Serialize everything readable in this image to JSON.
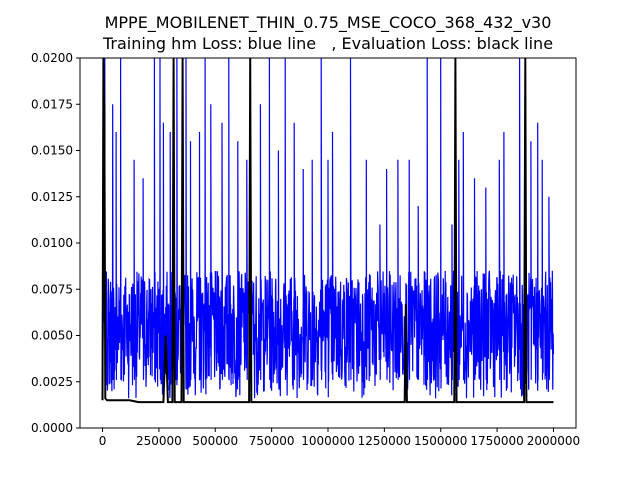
{
  "chart_data": {
    "type": "line",
    "title": "MPPE_MOBILENET_THIN_0.75_MSE_COCO_368_432_v30",
    "subtitle": "Training hm Loss: blue line   , Evaluation Loss: black line",
    "xlabel": "",
    "ylabel": "",
    "xlim": [
      -100000,
      2100000
    ],
    "ylim": [
      0,
      0.02
    ],
    "grid": false,
    "legend": "none",
    "x_ticks": [
      0,
      250000,
      500000,
      750000,
      1000000,
      1250000,
      1500000,
      1750000,
      2000000
    ],
    "x_tick_labels": [
      "0",
      "250000",
      "500000",
      "750000",
      "1000000",
      "1250000",
      "1500000",
      "1750000",
      "2000000"
    ],
    "y_ticks": [
      0,
      0.0025,
      0.005,
      0.0075,
      0.01,
      0.0125,
      0.015,
      0.0175,
      0.02
    ],
    "y_tick_labels": [
      "0.0000",
      "0.0025",
      "0.0050",
      "0.0075",
      "0.0100",
      "0.0125",
      "0.0150",
      "0.0175",
      "0.0200"
    ],
    "series": [
      {
        "color": "#0000ff",
        "x_range": [
          0,
          2000000
        ],
        "band_low": 0.0016,
        "band_high": 0.0085,
        "spikes": [
          [
            10000,
            0.02
          ],
          [
            45000,
            0.0175
          ],
          [
            60000,
            0.016
          ],
          [
            80000,
            0.02
          ],
          [
            140000,
            0.0145
          ],
          [
            180000,
            0.0135
          ],
          [
            230000,
            0.02
          ],
          [
            255000,
            0.02
          ],
          [
            270000,
            0.0165
          ],
          [
            300000,
            0.016
          ],
          [
            330000,
            0.02
          ],
          [
            370000,
            0.02
          ],
          [
            390000,
            0.0155
          ],
          [
            430000,
            0.016
          ],
          [
            455000,
            0.02
          ],
          [
            480000,
            0.0175
          ],
          [
            530000,
            0.0165
          ],
          [
            560000,
            0.02
          ],
          [
            600000,
            0.0155
          ],
          [
            640000,
            0.0145
          ],
          [
            700000,
            0.0175
          ],
          [
            740000,
            0.02
          ],
          [
            780000,
            0.015
          ],
          [
            810000,
            0.02
          ],
          [
            850000,
            0.0165
          ],
          [
            890000,
            0.014
          ],
          [
            930000,
            0.0145
          ],
          [
            970000,
            0.02
          ],
          [
            1000000,
            0.0145
          ],
          [
            1020000,
            0.016
          ],
          [
            1100000,
            0.02
          ],
          [
            1170000,
            0.0145
          ],
          [
            1230000,
            0.011
          ],
          [
            1260000,
            0.014
          ],
          [
            1310000,
            0.0145
          ],
          [
            1360000,
            0.0145
          ],
          [
            1400000,
            0.012
          ],
          [
            1440000,
            0.02
          ],
          [
            1500000,
            0.02
          ],
          [
            1550000,
            0.011
          ],
          [
            1580000,
            0.0145
          ],
          [
            1600000,
            0.016
          ],
          [
            1650000,
            0.0135
          ],
          [
            1700000,
            0.013
          ],
          [
            1760000,
            0.0145
          ],
          [
            1780000,
            0.016
          ],
          [
            1850000,
            0.02
          ],
          [
            1900000,
            0.0155
          ],
          [
            1930000,
            0.0165
          ],
          [
            1950000,
            0.0145
          ],
          [
            1980000,
            0.0125
          ],
          [
            1995000,
            0.0085
          ]
        ]
      },
      {
        "color": "#000000",
        "x": [
          0,
          4000,
          8000,
          12000,
          20000,
          40000,
          60000,
          80000,
          100000,
          120000,
          160000,
          200000,
          240000,
          250000,
          270000,
          280000,
          290000,
          310000,
          315000,
          320000,
          340000,
          350000,
          355000,
          360000,
          400000,
          500000,
          600000,
          640000,
          650000,
          655000,
          660000,
          670000,
          700000,
          800000,
          900000,
          1000000,
          1100000,
          1200000,
          1300000,
          1340000,
          1345000,
          1350000,
          1400000,
          1500000,
          1560000,
          1565000,
          1570000,
          1600000,
          1700000,
          1800000,
          1870000,
          1875000,
          1880000,
          1900000,
          1950000,
          2000000
        ],
        "y": [
          0.0015,
          0.02,
          0.0175,
          0.0016,
          0.0015,
          0.0015,
          0.0015,
          0.0015,
          0.0015,
          0.0015,
          0.0014,
          0.0014,
          0.0014,
          0.0014,
          0.0014,
          0.005,
          0.0014,
          0.0014,
          0.02,
          0.0014,
          0.0014,
          0.0014,
          0.02,
          0.0014,
          0.0014,
          0.0014,
          0.0014,
          0.0014,
          0.0014,
          0.02,
          0.0014,
          0.0014,
          0.0014,
          0.0014,
          0.0014,
          0.0014,
          0.0014,
          0.0014,
          0.0014,
          0.0014,
          0.0067,
          0.0014,
          0.0014,
          0.0014,
          0.0014,
          0.02,
          0.0014,
          0.0014,
          0.0014,
          0.0014,
          0.0014,
          0.02,
          0.0014,
          0.0014,
          0.0014,
          0.0014
        ]
      }
    ]
  }
}
